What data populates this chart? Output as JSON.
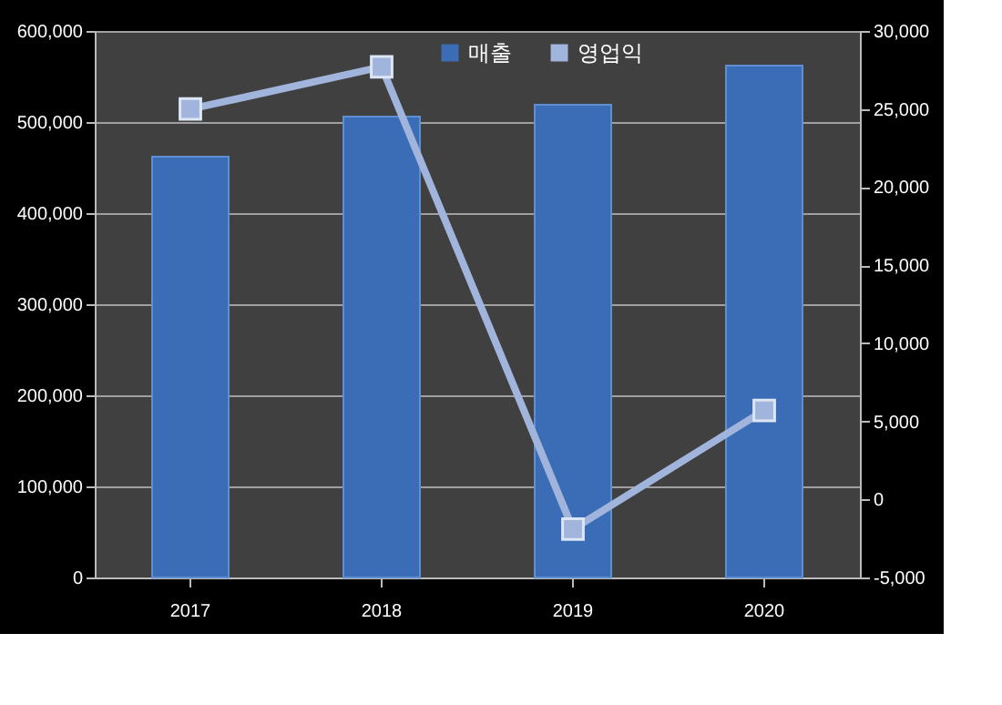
{
  "chart_data": {
    "type": "bar",
    "categories": [
      "2017",
      "2018",
      "2019",
      "2020"
    ],
    "series": [
      {
        "name": "매출",
        "color": "#3a6db5",
        "values": [
          462000,
          506000,
          519000,
          562000
        ]
      },
      {
        "name": "영업익",
        "type": "line",
        "axis": "y2",
        "color": "#a0b4dc",
        "marker": "square",
        "values": [
          25000,
          27700,
          -1900,
          5700
        ]
      }
    ],
    "ylim": [
      0,
      600000
    ],
    "yticks": [
      0,
      {
        "value": 100000,
        "label": "100,000"
      },
      {
        "value": 200000,
        "label": "200,000"
      },
      {
        "value": 300000,
        "label": "300,000"
      },
      {
        "value": 400000,
        "label": "400,000"
      },
      {
        "value": 500000,
        "label": "500,000"
      },
      {
        "value": 600000,
        "label": "600,000"
      }
    ],
    "y2lim": [
      -5000,
      30000
    ],
    "y2ticks": [
      {
        "value": -5000,
        "label": "-5,000"
      },
      0,
      {
        "value": 5000,
        "label": "5,000"
      },
      {
        "value": 10000,
        "label": "10,000"
      },
      {
        "value": 15000,
        "label": "15,000"
      },
      {
        "value": 20000,
        "label": "20,000"
      },
      {
        "value": 25000,
        "label": "25,000"
      },
      {
        "value": 30000,
        "label": "30,000"
      }
    ],
    "grid": "y",
    "legend": "top"
  }
}
